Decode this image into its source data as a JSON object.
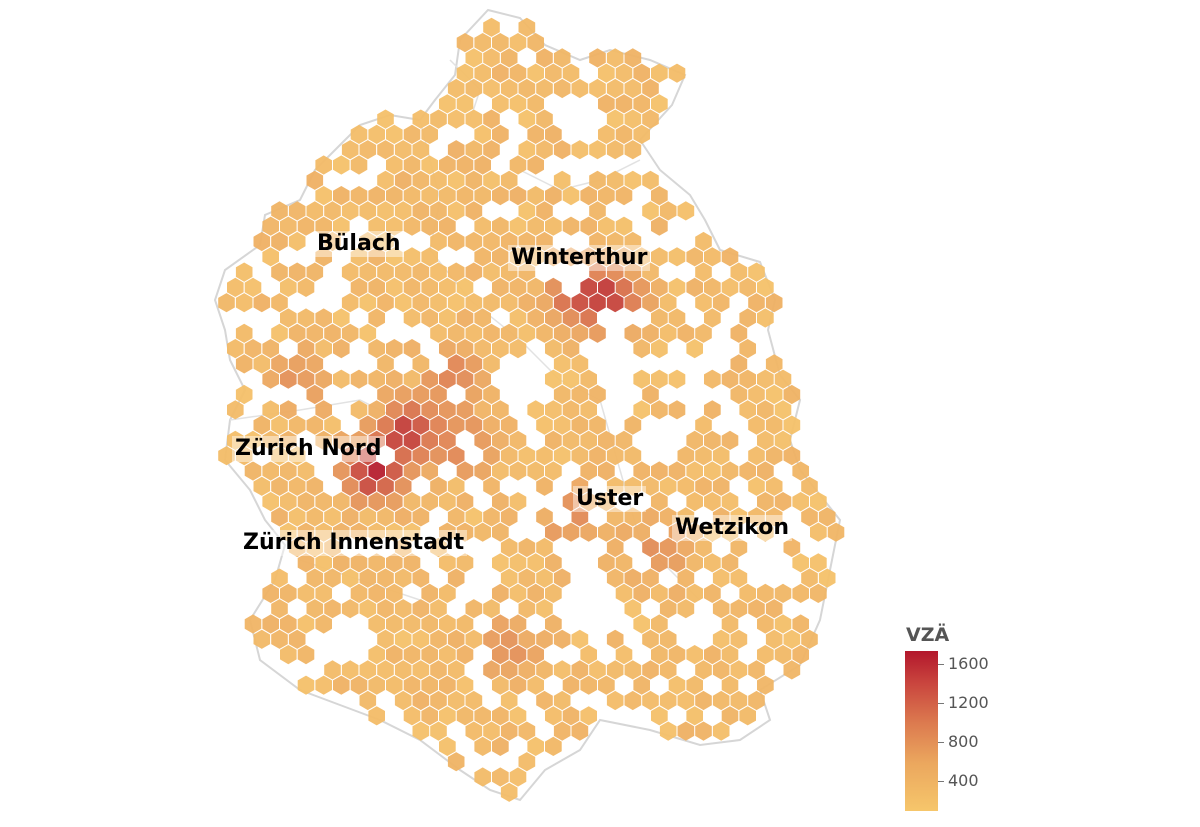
{
  "map": {
    "colors": {
      "low": "#f6c66b",
      "mid": "#dc7a4f",
      "high": "#b3172c",
      "border": "#d6d6d6"
    },
    "hotspots": [
      {
        "name": "Zürich Innenstadt",
        "value": 1700
      },
      {
        "name": "Zürich Nord",
        "value": 1400
      },
      {
        "name": "Winterthur",
        "value": 1300
      }
    ]
  },
  "labels": {
    "bulach": "Bülach",
    "winterthur": "Winterthur",
    "zurich_nord": "Zürich Nord",
    "uster": "Uster",
    "wetzikon": "Wetzikon",
    "zurich_innenstadt": "Zürich Innenstadt"
  },
  "legend": {
    "title": "VZÄ",
    "min": 100,
    "max": 1750,
    "ticks": [
      "1600",
      "1200",
      "800",
      "400"
    ]
  }
}
